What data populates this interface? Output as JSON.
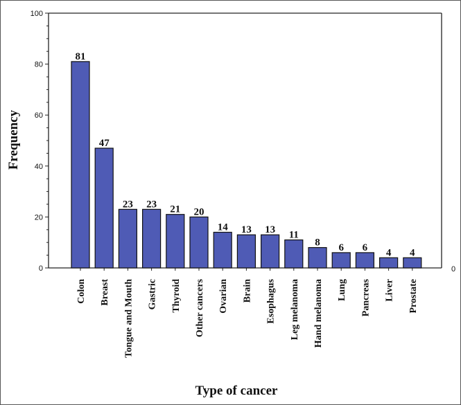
{
  "chart_data": {
    "type": "bar",
    "xlabel": "Type of cancer",
    "ylabel": "Frequency",
    "ylim": [
      0,
      100
    ],
    "yticks": [
      0,
      20,
      40,
      60,
      80,
      100
    ],
    "right_axis_label": "0",
    "grid": false,
    "bar_color": "#4f5bb5",
    "categories": [
      "Colon",
      "Breast",
      "Tongue and Mouth",
      "Gastric",
      "Thyroid",
      "Other cancers",
      "Ovarian",
      "Brain",
      "Esophagus",
      "Leg melanoma",
      "Hand melanoma",
      "Lung",
      "Pancreas",
      "Liver",
      "Prostate"
    ],
    "values": [
      81,
      47,
      23,
      23,
      21,
      20,
      14,
      13,
      13,
      11,
      8,
      6,
      6,
      4,
      4
    ]
  }
}
